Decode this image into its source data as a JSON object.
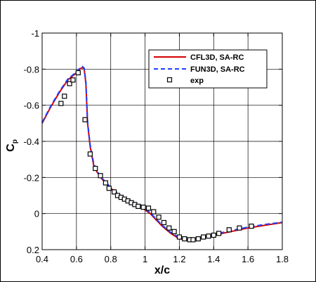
{
  "chart_data": {
    "type": "line",
    "title": "",
    "xlabel": "x/c",
    "ylabel": "C",
    "ylabel_sub": "p",
    "xlim": [
      0.4,
      1.8
    ],
    "ylim": [
      0.2,
      -1.0
    ],
    "y_inverted": true,
    "grid": true,
    "legend_placement": "top-right",
    "x_ticks": [
      "0.4",
      "0.6",
      "0.8",
      "1",
      "1.2",
      "1.4",
      "1.6",
      "1.8"
    ],
    "x_tick_values": [
      0.4,
      0.6,
      0.8,
      1.0,
      1.2,
      1.4,
      1.6,
      1.8
    ],
    "y_ticks": [
      "-1",
      "-0.8",
      "-0.6",
      "-0.4",
      "-0.2",
      "0",
      "0.2"
    ],
    "y_tick_values": [
      -1.0,
      -0.8,
      -0.6,
      -0.4,
      -0.2,
      0.0,
      0.2
    ],
    "series": [
      {
        "name": "CFL3D, SA-RC",
        "style": "line",
        "color": "#d40000",
        "x": [
          0.4,
          0.45,
          0.5,
          0.55,
          0.6,
          0.62,
          0.635,
          0.645,
          0.655,
          0.665,
          0.68,
          0.7,
          0.72,
          0.75,
          0.78,
          0.8,
          0.85,
          0.9,
          0.95,
          0.98,
          1.0,
          1.03,
          1.06,
          1.1,
          1.15,
          1.2,
          1.25,
          1.3,
          1.4,
          1.5,
          1.6,
          1.7,
          1.8
        ],
        "y": [
          -0.5,
          -0.59,
          -0.67,
          -0.74,
          -0.78,
          -0.8,
          -0.81,
          -0.8,
          -0.72,
          -0.5,
          -0.37,
          -0.27,
          -0.23,
          -0.19,
          -0.16,
          -0.14,
          -0.1,
          -0.07,
          -0.05,
          -0.04,
          -0.02,
          0.0,
          0.03,
          0.07,
          0.11,
          0.14,
          0.145,
          0.14,
          0.12,
          0.1,
          0.08,
          0.065,
          0.05
        ]
      },
      {
        "name": "FUN3D, SA-RC",
        "style": "dashed",
        "color": "#1e40ff",
        "x": [
          0.4,
          0.45,
          0.5,
          0.55,
          0.6,
          0.62,
          0.635,
          0.645,
          0.655,
          0.665,
          0.68,
          0.7,
          0.72,
          0.75,
          0.78,
          0.8,
          0.85,
          0.9,
          0.95,
          0.98,
          1.0,
          1.03,
          1.06,
          1.1,
          1.15,
          1.2,
          1.25,
          1.3,
          1.4,
          1.5,
          1.6,
          1.7,
          1.8
        ],
        "y": [
          -0.505,
          -0.595,
          -0.675,
          -0.745,
          -0.785,
          -0.805,
          -0.815,
          -0.805,
          -0.73,
          -0.51,
          -0.38,
          -0.28,
          -0.235,
          -0.195,
          -0.165,
          -0.145,
          -0.105,
          -0.075,
          -0.055,
          -0.045,
          -0.025,
          -0.005,
          0.025,
          0.065,
          0.105,
          0.135,
          0.14,
          0.135,
          0.115,
          0.095,
          0.075,
          0.06,
          0.048
        ]
      },
      {
        "name": "exp",
        "style": "markers",
        "color": "#000000",
        "x": [
          0.51,
          0.53,
          0.56,
          0.58,
          0.61,
          0.65,
          0.68,
          0.71,
          0.74,
          0.77,
          0.79,
          0.82,
          0.84,
          0.86,
          0.88,
          0.9,
          0.92,
          0.94,
          0.96,
          0.99,
          1.02,
          1.05,
          1.08,
          1.11,
          1.14,
          1.17,
          1.2,
          1.23,
          1.26,
          1.28,
          1.31,
          1.34,
          1.37,
          1.4,
          1.43,
          1.49,
          1.55,
          1.62
        ],
        "y": [
          -0.61,
          -0.65,
          -0.72,
          -0.74,
          -0.78,
          -0.52,
          -0.33,
          -0.25,
          -0.21,
          -0.17,
          -0.14,
          -0.12,
          -0.1,
          -0.09,
          -0.08,
          -0.07,
          -0.06,
          -0.05,
          -0.04,
          -0.035,
          -0.03,
          -0.01,
          0.02,
          0.05,
          0.08,
          0.1,
          0.13,
          0.14,
          0.145,
          0.145,
          0.14,
          0.13,
          0.125,
          0.12,
          0.11,
          0.09,
          0.08,
          0.07
        ]
      }
    ]
  }
}
